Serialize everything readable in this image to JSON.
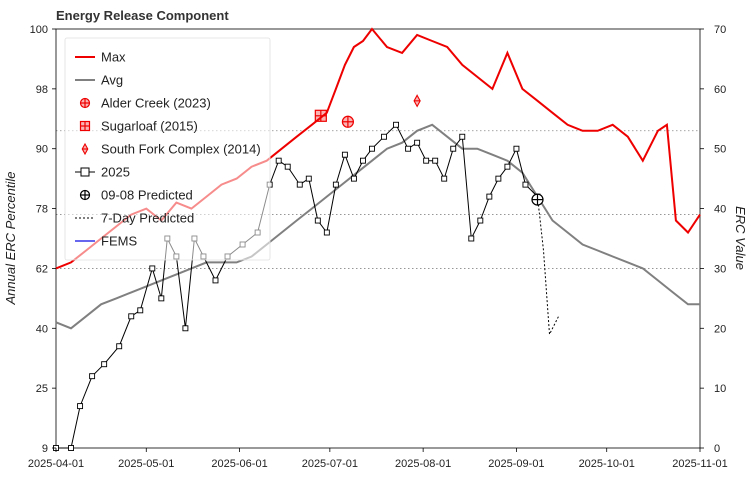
{
  "chart_data": {
    "type": "line",
    "title": "Energy Release Component",
    "ylabel_left": "Annual ERC Percentile",
    "ylabel_right": "ERC Value",
    "left_ticks": [
      "100",
      "98",
      "90",
      "78",
      "62",
      "40",
      "25",
      "9"
    ],
    "ylim_right": [
      0,
      70
    ],
    "right_ticks": [
      0,
      10,
      20,
      30,
      40,
      50,
      60,
      70
    ],
    "x_range": [
      "2025-04-01",
      "2025-11-01"
    ],
    "x_ticks": [
      "2025-04-01",
      "2025-05-01",
      "2025-06-01",
      "2025-07-01",
      "2025-08-01",
      "2025-09-01",
      "2025-10-01",
      "2025-11-01"
    ],
    "percentile_lines": [
      30,
      39,
      53
    ],
    "legend_position": "top-left",
    "series": [
      {
        "name": "Max",
        "color": "#ee0000",
        "x": [
          "2025-04-01",
          "2025-04-06",
          "2025-04-11",
          "2025-04-16",
          "2025-04-21",
          "2025-04-26",
          "2025-05-01",
          "2025-05-06",
          "2025-05-11",
          "2025-05-16",
          "2025-05-21",
          "2025-05-26",
          "2025-05-31",
          "2025-06-05",
          "2025-06-10",
          "2025-06-15",
          "2025-06-20",
          "2025-06-25",
          "2025-06-30",
          "2025-07-03",
          "2025-07-06",
          "2025-07-09",
          "2025-07-12",
          "2025-07-15",
          "2025-07-20",
          "2025-07-25",
          "2025-07-30",
          "2025-08-04",
          "2025-08-09",
          "2025-08-14",
          "2025-08-19",
          "2025-08-24",
          "2025-08-29",
          "2025-09-03",
          "2025-09-08",
          "2025-09-13",
          "2025-09-18",
          "2025-09-23",
          "2025-09-28",
          "2025-10-03",
          "2025-10-08",
          "2025-10-13",
          "2025-10-18",
          "2025-10-21",
          "2025-10-24",
          "2025-10-28",
          "2025-11-01"
        ],
        "values": [
          30,
          31,
          33,
          35,
          37,
          39,
          40,
          38,
          41,
          40,
          42,
          44,
          45,
          47,
          48,
          50,
          52,
          54,
          56,
          60,
          64,
          67,
          68,
          70,
          67,
          66,
          69,
          68,
          67,
          64,
          62,
          60,
          66,
          60,
          58,
          56,
          54,
          53,
          53,
          54,
          52,
          48,
          53,
          54,
          38,
          36,
          39
        ]
      },
      {
        "name": "Avg",
        "color": "#808080",
        "x": [
          "2025-04-01",
          "2025-04-06",
          "2025-04-11",
          "2025-04-16",
          "2025-04-21",
          "2025-04-26",
          "2025-05-01",
          "2025-05-06",
          "2025-05-11",
          "2025-05-16",
          "2025-05-21",
          "2025-05-26",
          "2025-05-31",
          "2025-06-05",
          "2025-06-10",
          "2025-06-15",
          "2025-06-20",
          "2025-06-25",
          "2025-06-30",
          "2025-07-05",
          "2025-07-10",
          "2025-07-15",
          "2025-07-20",
          "2025-07-25",
          "2025-07-30",
          "2025-08-04",
          "2025-08-09",
          "2025-08-14",
          "2025-08-19",
          "2025-08-24",
          "2025-08-29",
          "2025-09-03",
          "2025-09-08",
          "2025-09-13",
          "2025-09-18",
          "2025-09-23",
          "2025-09-28",
          "2025-10-03",
          "2025-10-08",
          "2025-10-13",
          "2025-10-18",
          "2025-10-23",
          "2025-10-28",
          "2025-11-01"
        ],
        "values": [
          21,
          20,
          22,
          24,
          25,
          26,
          27,
          28,
          29,
          30,
          31,
          31,
          31,
          32,
          34,
          36,
          38,
          40,
          42,
          44,
          46,
          48,
          50,
          51,
          53,
          54,
          52,
          50,
          50,
          49,
          48,
          46,
          42,
          38,
          36,
          34,
          33,
          32,
          31,
          30,
          28,
          26,
          24,
          24
        ]
      },
      {
        "name": "2025",
        "color": "#000000",
        "x": [
          "2025-04-01",
          "2025-04-06",
          "2025-04-09",
          "2025-04-13",
          "2025-04-17",
          "2025-04-22",
          "2025-04-26",
          "2025-04-29",
          "2025-05-03",
          "2025-05-06",
          "2025-05-08",
          "2025-05-11",
          "2025-05-14",
          "2025-05-17",
          "2025-05-20",
          "2025-05-24",
          "2025-05-28",
          "2025-06-02",
          "2025-06-07",
          "2025-06-11",
          "2025-06-14",
          "2025-06-17",
          "2025-06-21",
          "2025-06-24",
          "2025-06-27",
          "2025-06-30",
          "2025-07-03",
          "2025-07-06",
          "2025-07-09",
          "2025-07-12",
          "2025-07-15",
          "2025-07-19",
          "2025-07-23",
          "2025-07-27",
          "2025-07-30",
          "2025-08-02",
          "2025-08-05",
          "2025-08-08",
          "2025-08-11",
          "2025-08-14",
          "2025-08-17",
          "2025-08-20",
          "2025-08-23",
          "2025-08-26",
          "2025-08-29",
          "2025-09-01",
          "2025-09-04",
          "2025-09-08"
        ],
        "values": [
          0,
          0,
          7,
          12,
          14,
          17,
          22,
          23,
          30,
          25,
          35,
          32,
          20,
          35,
          32,
          28,
          32,
          34,
          36,
          44,
          48,
          47,
          44,
          45,
          38,
          36,
          44,
          49,
          45,
          48,
          50,
          52,
          54,
          50,
          51,
          48,
          48,
          45,
          50,
          52,
          35,
          38,
          42,
          45,
          47,
          50,
          44,
          42
        ]
      },
      {
        "name": "7-Day Predicted",
        "color": "#000000",
        "x": [
          "2025-09-08",
          "2025-09-10",
          "2025-09-12",
          "2025-09-15"
        ],
        "values": [
          42,
          33,
          19,
          22
        ]
      }
    ],
    "points": [
      {
        "name": "Alder Creek (2023)",
        "color": "#ee0000",
        "x": "2025-07-07",
        "value": 54.5
      },
      {
        "name": "Sugarloaf (2015)",
        "color": "#ee0000",
        "x": "2025-06-28",
        "value": 55.5
      },
      {
        "name": "South Fork Complex (2014)",
        "color": "#ee0000",
        "x": "2025-07-30",
        "value": 58
      },
      {
        "name": "09-08 Predicted",
        "color": "#000000",
        "x": "2025-09-08",
        "value": 41.5
      }
    ],
    "legend": [
      {
        "label": "Max",
        "symbol": "line",
        "color": "#ee0000"
      },
      {
        "label": "Avg",
        "symbol": "line",
        "color": "#808080"
      },
      {
        "label": "Alder Creek (2023)",
        "symbol": "circle-plus",
        "color": "#ee0000"
      },
      {
        "label": "Sugarloaf (2015)",
        "symbol": "square-plus",
        "color": "#ee0000"
      },
      {
        "label": "South Fork Complex (2014)",
        "symbol": "thin-diamond",
        "color": "#ee0000"
      },
      {
        "label": "2025",
        "symbol": "line-square",
        "color": "#000000"
      },
      {
        "label": "09-08 Predicted",
        "symbol": "circle-plus",
        "color": "#000000"
      },
      {
        "label": "7-Day Predicted",
        "symbol": "dotted",
        "color": "#000000"
      },
      {
        "label": "FEMS",
        "symbol": "line",
        "color": "#6666ee"
      }
    ]
  }
}
